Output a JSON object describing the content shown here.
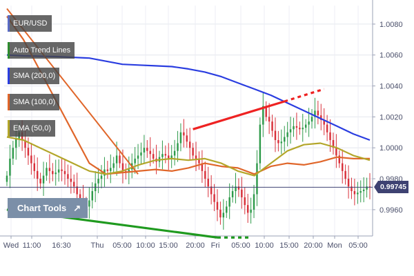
{
  "legend": [
    {
      "label": "EUR/USD",
      "color": "#5a6bc4"
    },
    {
      "label": "Auto Trend Lines",
      "color": "#2e8b2e"
    },
    {
      "label": "SMA (200,0)",
      "color": "#2a3de0"
    },
    {
      "label": "SMA (100,0)",
      "color": "#e0662a"
    },
    {
      "label": "EMA (50,0)",
      "color": "#b3a62a"
    }
  ],
  "toolbar": {
    "chart_tools_label": "Chart Tools",
    "chart_tools_icon": "expand-arrow-icon"
  },
  "current_price": "0.99745",
  "colors": {
    "up_candle": "#2e9a4a",
    "down_candle": "#d8303a",
    "sma200": "#2a3de0",
    "sma100": "#e0662a",
    "ema50": "#b3a62a",
    "trend_red": "#ee2222",
    "trend_green": "#1f9a1f",
    "trend_orange": "#e0662a",
    "price_line": "#3e4272"
  },
  "chart_data": {
    "type": "candlestick",
    "symbol": "EUR/USD",
    "x_tick_labels": [
      "Wed",
      "11:00",
      "16:30",
      "Thu",
      "05:00",
      "10:00",
      "15:00",
      "20:00",
      "Fri",
      "05:00",
      "10:00",
      "15:00",
      "20:00",
      "Mon",
      "05:00"
    ],
    "y_tick_labels": [
      "1.0080",
      "1.0060",
      "1.0040",
      "1.0020",
      "1.0000",
      "0.9980",
      "0.9960"
    ],
    "ylim": [
      0.9943,
      1.0092
    ],
    "n_bars": 120,
    "close": [
      0.9982,
      0.9993,
      1.0,
      1.0006,
      1.001,
      1.0005,
      1.0,
      0.9995,
      0.999,
      0.9985,
      0.998,
      0.9977,
      0.9982,
      0.9987,
      0.9985,
      0.9983,
      0.9984,
      0.9986,
      0.9985,
      0.9983,
      0.998,
      0.9978,
      0.9975,
      0.997,
      0.9967,
      0.9964,
      0.9962,
      0.9966,
      0.9972,
      0.9977,
      0.998,
      0.9982,
      0.9986,
      0.9985,
      0.9987,
      0.999,
      0.9995,
      0.999,
      0.9985,
      0.9984,
      0.9986,
      0.999,
      0.9993,
      0.9995,
      0.9997,
      1.0,
      0.9998,
      0.9996,
      0.9993,
      0.9991,
      0.9994,
      0.9996,
      0.9995,
      0.9993,
      0.9995,
      0.9998,
      1.0003,
      1.001,
      1.0008,
      1.0004,
      1.0,
      0.9995,
      0.9993,
      0.999,
      0.9985,
      0.998,
      0.9975,
      0.997,
      0.9965,
      0.996,
      0.9955,
      0.9958,
      0.9962,
      0.9968,
      0.9972,
      0.9975,
      0.9973,
      0.9968,
      0.9963,
      0.9958,
      0.996,
      0.997,
      0.999,
      1.0015,
      1.0027,
      1.002,
      1.0017,
      1.0011,
      1.0005,
      1.0003,
      1.0004,
      1.0007,
      1.001,
      1.0012,
      1.0014,
      1.0013,
      1.0012,
      1.0013,
      1.0015,
      1.0017,
      1.002,
      1.0024,
      1.0021,
      1.0018,
      1.0015,
      1.001,
      1.0005,
      1.0,
      0.9995,
      0.999,
      0.9985,
      0.998,
      0.9975,
      0.9972,
      0.997,
      0.9971,
      0.9972,
      0.9973,
      0.9975,
      0.99745
    ],
    "series": [
      {
        "name": "SMA (200,0)",
        "values": [
          1.006,
          1.00595,
          1.00592,
          1.0059,
          1.00585,
          1.0058,
          1.0056,
          1.0054,
          1.00535,
          1.0053,
          1.00525,
          1.0051,
          1.0049,
          1.0046,
          1.0042,
          1.0038,
          1.0034,
          1.0029,
          1.0024,
          1.0019,
          1.0014,
          1.0009,
          1.0005
        ]
      },
      {
        "name": "SMA (100,0)",
        "values": [
          1.0085,
          1.007,
          1.005,
          1.003,
          1.001,
          0.999,
          0.9983,
          0.9984,
          0.9985,
          0.9986,
          0.9985,
          0.9987,
          0.999,
          0.9988,
          0.9987,
          0.9983,
          0.9988,
          0.999,
          0.9989,
          0.9991,
          0.9994,
          0.9993,
          0.9993
        ]
      },
      {
        "name": "EMA (50,0)",
        "values": [
          1.0007,
          1.0005,
          1.0,
          0.9995,
          0.999,
          0.9985,
          0.9983,
          0.9985,
          0.9989,
          0.9992,
          0.9993,
          0.9992,
          0.9993,
          0.999,
          0.9985,
          0.9982,
          0.999,
          0.9998,
          1.0002,
          1.0003,
          1.0,
          0.9995,
          0.9992
        ]
      }
    ],
    "trend_lines": [
      {
        "color": "red",
        "start": [
          61,
          1.0012
        ],
        "end": [
          91,
          1.003
        ],
        "extended_end": [
          104,
          1.0038
        ]
      },
      {
        "color": "green",
        "start": [
          0,
          0.996
        ],
        "end": [
          69,
          0.9942
        ],
        "extended_end": [
          80,
          0.9942
        ]
      },
      {
        "color": "orange",
        "start": [
          0,
          1.009
        ],
        "end": [
          43,
          0.9983
        ]
      }
    ],
    "grid": true
  }
}
